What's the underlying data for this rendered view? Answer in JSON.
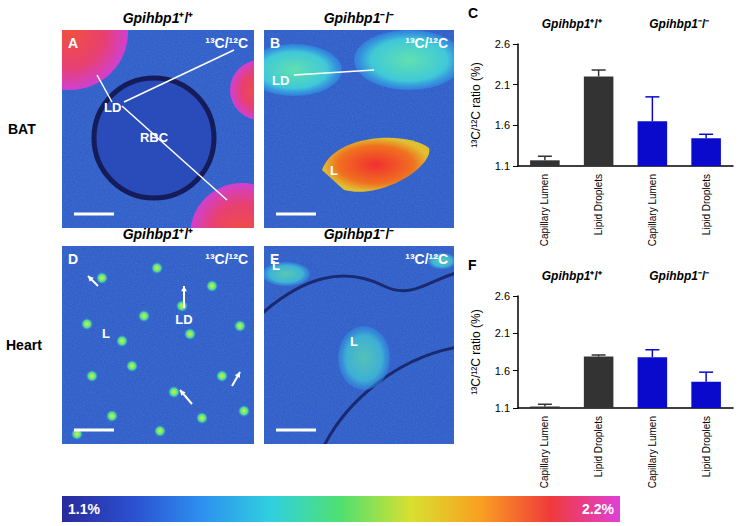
{
  "rows": [
    "BAT",
    "Heart"
  ],
  "panels": [
    {
      "letter": "A",
      "tissue": "BAT",
      "genotype": {
        "gene": "Gpihbp1",
        "sup": "⁺/⁺"
      },
      "tag": "¹³C/¹²C",
      "labels": [
        "LD",
        "RBC"
      ]
    },
    {
      "letter": "B",
      "tissue": "BAT",
      "genotype": {
        "gene": "Gpihbp1",
        "sup": "⁻/⁻"
      },
      "tag": "¹³C/¹²C",
      "labels": [
        "LD",
        "L"
      ]
    },
    {
      "letter": "D",
      "tissue": "Heart",
      "genotype": {
        "gene": "Gpihbp1",
        "sup": "⁺/⁺"
      },
      "tag": "¹³C/¹²C",
      "labels": [
        "LD",
        "L"
      ]
    },
    {
      "letter": "E",
      "tissue": "Heart",
      "genotype": {
        "gene": "Gpihbp1",
        "sup": "⁻/⁻"
      },
      "tag": "¹³C/¹²C",
      "labels": [
        "L",
        "L"
      ]
    }
  ],
  "colorbar": {
    "range": [
      1.1,
      2.2
    ],
    "ticks": [
      {
        "value": 1.1,
        "label": "1.1%"
      },
      {
        "value": 2.2,
        "label": "2.2%"
      }
    ]
  },
  "chart_data": [
    {
      "type": "bar",
      "title": "C",
      "group_labels": [
        {
          "gene": "Gpihbp1",
          "sup": "⁺/⁺"
        },
        {
          "gene": "Gpihbp1",
          "sup": "⁻/⁻"
        }
      ],
      "categories": [
        "Capillary Lumen",
        "Lipid Droplets",
        "Capillary Lumen",
        "Lipid Droplets"
      ],
      "values": [
        1.17,
        2.2,
        1.65,
        1.44
      ],
      "errors": [
        0.05,
        0.08,
        0.3,
        0.05
      ],
      "colors": [
        "#333333",
        "#333333",
        "#0a0acc",
        "#0a0acc"
      ],
      "y_label": "¹³C/¹²C ratio (%)",
      "ylim": [
        1.1,
        2.6
      ],
      "yticks": [
        1.1,
        1.6,
        2.1,
        2.6
      ],
      "grid": false
    },
    {
      "type": "bar",
      "title": "F",
      "group_labels": [
        {
          "gene": "Gpihbp1",
          "sup": "⁺/⁺"
        },
        {
          "gene": "Gpihbp1",
          "sup": "⁻/⁻"
        }
      ],
      "categories": [
        "Capillary Lumen",
        "Lipid Droplets",
        "Capillary Lumen",
        "Lipid Droplets"
      ],
      "values": [
        1.12,
        1.79,
        1.78,
        1.45
      ],
      "errors": [
        0.03,
        0.02,
        0.1,
        0.13
      ],
      "colors": [
        "#333333",
        "#333333",
        "#0a0acc",
        "#0a0acc"
      ],
      "y_label": "¹³C/¹²C ratio (%)",
      "ylim": [
        1.1,
        2.6
      ],
      "yticks": [
        1.1,
        1.6,
        2.1,
        2.6
      ],
      "grid": false
    }
  ]
}
